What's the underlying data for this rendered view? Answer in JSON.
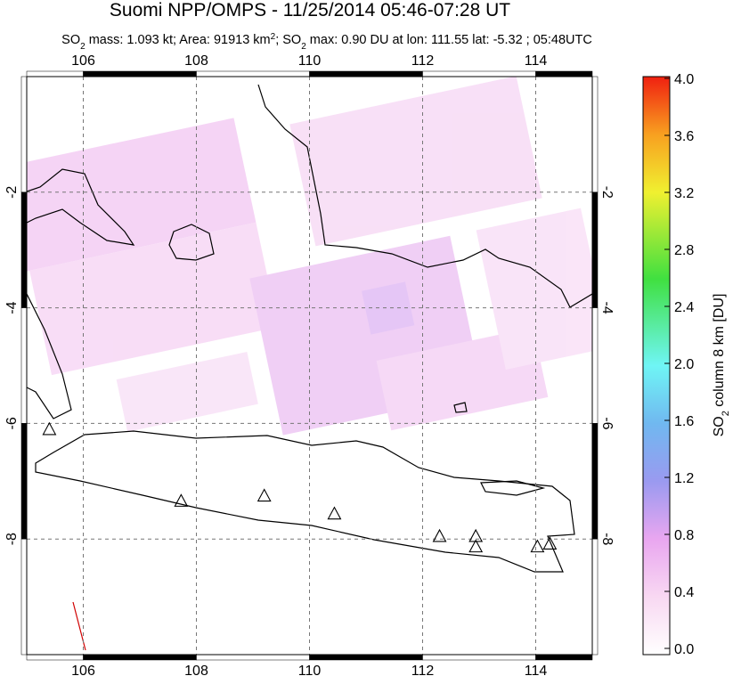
{
  "chart_data": {
    "type": "map",
    "title": "Suomi NPP/OMPS - 11/25/2014 05:46-07:28 UT",
    "subtitle": [
      "SO",
      "2",
      " mass: 1.093 kt; Area: 91913 km",
      "2",
      "; SO",
      "2",
      " max: 0.90 DU at lon: 111.55 lat: -5.32 ; 05:48UTC"
    ],
    "xlim": [
      105,
      115
    ],
    "ylim": [
      -10,
      0
    ],
    "xticks": [
      106,
      108,
      110,
      112,
      114
    ],
    "yticks": [
      -2,
      -4,
      -6,
      -8
    ],
    "grid": true,
    "volcanoes": {
      "lon": [
        105.4,
        107.73,
        109.2,
        110.44,
        112.3,
        112.94,
        112.94,
        114.03,
        114.25
      ],
      "lat": [
        -6.1,
        -7.34,
        -7.25,
        -7.56,
        -7.95,
        -7.95,
        -8.13,
        -8.13,
        -8.08
      ]
    },
    "colorbar": {
      "label": [
        "SO",
        "2",
        " column 8 km [DU]"
      ],
      "clim": [
        0,
        4
      ],
      "ticks": [
        {
          "value": 0,
          "label": "0.0"
        },
        {
          "value": 0.4,
          "label": "0.4"
        },
        {
          "value": 0.8,
          "label": "0.8"
        },
        {
          "value": 1.2,
          "label": "1.2"
        },
        {
          "value": 1.6,
          "label": "1.6"
        },
        {
          "value": 2.0,
          "label": "2.0"
        },
        {
          "value": 2.4,
          "label": "2.4"
        },
        {
          "value": 2.8,
          "label": "2.8"
        },
        {
          "value": 3.2,
          "label": "3.2"
        },
        {
          "value": 3.6,
          "label": "3.6"
        },
        {
          "value": 4.0,
          "label": "4.0"
        }
      ]
    }
  }
}
